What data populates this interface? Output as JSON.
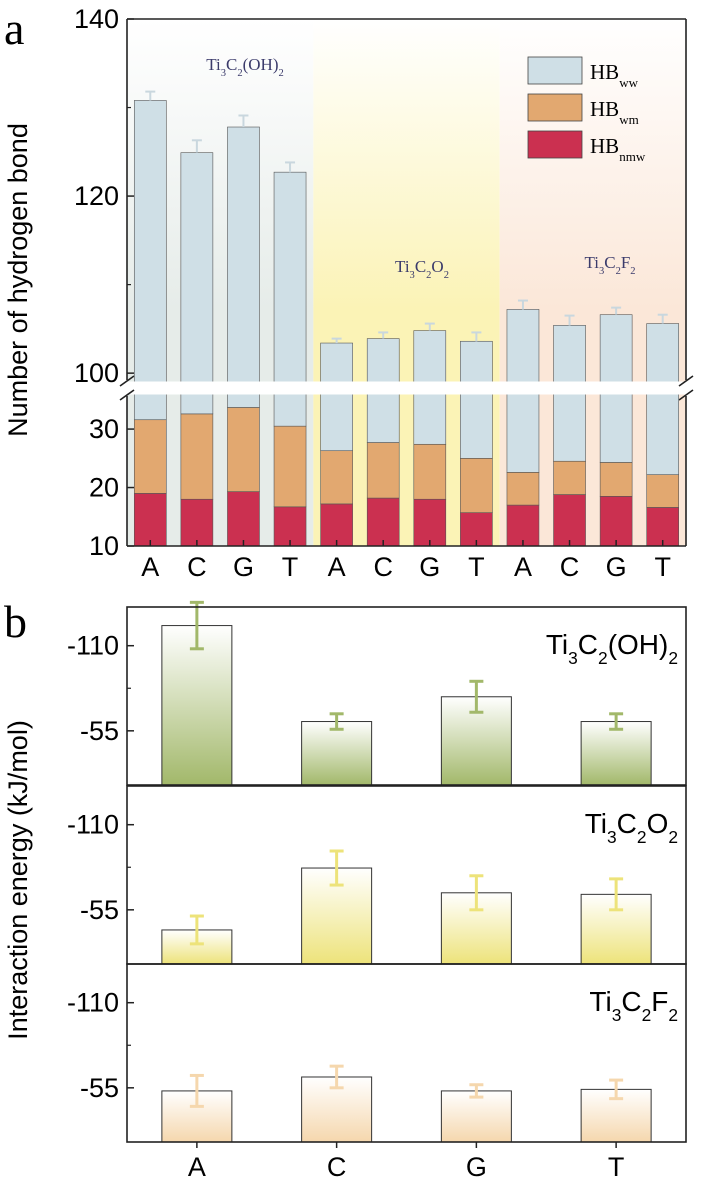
{
  "chart_data": [
    {
      "type": "bar",
      "stacked": true,
      "panel_label": "a",
      "ylabel": "Number of hydrogen bond",
      "axis_break": [
        36,
        99
      ],
      "ylim_lower": [
        10,
        36
      ],
      "ylim_upper": [
        99,
        140
      ],
      "yticks": [
        10,
        20,
        30,
        100,
        120,
        140
      ],
      "categories": [
        "A",
        "C",
        "G",
        "T",
        "A",
        "C",
        "G",
        "T",
        "A",
        "C",
        "G",
        "T"
      ],
      "groups": [
        {
          "label_main": "Ti",
          "parts": [
            [
              "3",
              "sub"
            ],
            [
              "C",
              ""
            ],
            [
              "2",
              "sub"
            ],
            [
              "(OH)",
              ""
            ],
            [
              "2",
              "sub"
            ]
          ],
          "color": "#e6ece9"
        },
        {
          "label_main": "Ti",
          "parts": [
            [
              "3",
              "sub"
            ],
            [
              "C",
              ""
            ],
            [
              "2",
              "sub"
            ],
            [
              "O",
              ""
            ],
            [
              "2",
              "sub"
            ]
          ],
          "color": "#fbf3b6"
        },
        {
          "label_main": "Ti",
          "parts": [
            [
              "3",
              "sub"
            ],
            [
              "C",
              ""
            ],
            [
              "2",
              "sub"
            ],
            [
              "F",
              ""
            ],
            [
              "2",
              "sub"
            ]
          ],
          "color": "#fbe7d8"
        }
      ],
      "legend": {
        "position": "top-right",
        "entries": [
          {
            "base": "HB",
            "sub": "ww",
            "color": "#cfdfe6"
          },
          {
            "base": "HB",
            "sub": "wm",
            "color": "#e2a870"
          },
          {
            "base": "HB",
            "sub": "nmw",
            "color": "#cb3050"
          }
        ]
      },
      "series": [
        {
          "name": "HBnmw",
          "color": "#cb3050",
          "values": [
            19,
            18,
            19.3,
            16.7,
            17.2,
            18.2,
            18,
            15.7,
            17,
            18.8,
            18.5,
            16.6
          ]
        },
        {
          "name": "HBwm",
          "color": "#e2a870",
          "values": [
            12.6,
            14.6,
            14.4,
            13.8,
            9.1,
            9.5,
            9.4,
            9.3,
            5.6,
            5.7,
            5.8,
            5.6
          ]
        },
        {
          "name": "HBww",
          "color": "#cfdfe6",
          "totals": [
            130.8,
            124.9,
            127.8,
            122.7,
            103.4,
            103.9,
            104.8,
            103.6,
            107.2,
            105.4,
            106.6,
            105.6
          ]
        }
      ],
      "error_tops": [
        131.8,
        126.3,
        129.1,
        123.8,
        103.9,
        104.6,
        105.6,
        104.6,
        108.2,
        106.5,
        107.4,
        106.6
      ]
    },
    {
      "type": "bar",
      "panel_label": "b",
      "ylabel": "Interaction energy (kJ/mol)",
      "categories": [
        "A",
        "C",
        "G",
        "T"
      ],
      "y_reversed_negative": true,
      "yticks": [
        -110,
        -55
      ],
      "ylim": [
        -20,
        -135
      ],
      "panels": [
        {
          "parts": [
            [
              "Ti",
              ""
            ],
            [
              "3",
              "sub"
            ],
            [
              "C",
              ""
            ],
            [
              "2",
              "sub"
            ],
            [
              "(OH)",
              ""
            ],
            [
              "2",
              "sub"
            ]
          ],
          "color": "#a2b86a",
          "values": [
            -123,
            -61,
            -77,
            -61
          ],
          "errors": [
            15,
            5,
            10,
            5
          ]
        },
        {
          "parts": [
            [
              "Ti",
              ""
            ],
            [
              "3",
              "sub"
            ],
            [
              "C",
              ""
            ],
            [
              "2",
              "sub"
            ],
            [
              "O",
              ""
            ],
            [
              "2",
              "sub"
            ]
          ],
          "color": "#ede37a",
          "values": [
            -42,
            -82,
            -66,
            -65
          ],
          "errors": [
            9,
            11,
            11,
            10
          ]
        },
        {
          "parts": [
            [
              "Ti",
              ""
            ],
            [
              "3",
              "sub"
            ],
            [
              "C",
              ""
            ],
            [
              "2",
              "sub"
            ],
            [
              "F",
              ""
            ],
            [
              "2",
              "sub"
            ]
          ],
          "color": "#f5d7ad",
          "values": [
            -53,
            -62,
            -53,
            -54
          ],
          "errors": [
            10,
            7,
            4,
            6
          ]
        }
      ]
    }
  ]
}
